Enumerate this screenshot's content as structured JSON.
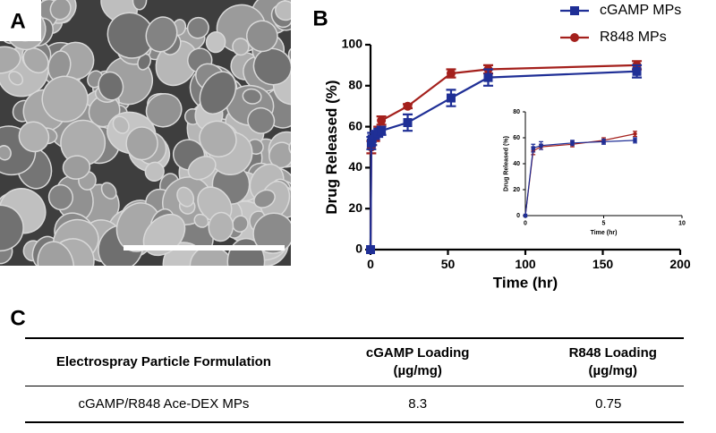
{
  "panel_labels": [
    "A",
    "B",
    "C"
  ],
  "chart_data": [
    {
      "type": "line",
      "xlabel": "Time (hr)",
      "ylabel": "Drug Released (%)",
      "x": [
        0,
        0.5,
        1,
        3,
        5,
        7,
        24,
        52,
        76,
        172
      ],
      "series": [
        {
          "name": "cGAMP MPs",
          "color": "#1f2f96",
          "marker": "square",
          "values": [
            0,
            52,
            54,
            56,
            57,
            58,
            62,
            74,
            84,
            87
          ],
          "errors": [
            0,
            3,
            3,
            2,
            2,
            2,
            4,
            4,
            4,
            3
          ]
        },
        {
          "name": "R848 MPs",
          "color": "#a4201c",
          "marker": "circle",
          "values": [
            0,
            50,
            53,
            55,
            58,
            63,
            70,
            86,
            88,
            90
          ],
          "errors": [
            0,
            3,
            2,
            2,
            2,
            2,
            1,
            2,
            2,
            2
          ]
        }
      ],
      "xlim": [
        0,
        200
      ],
      "xticks": [
        0,
        50,
        100,
        150,
        200
      ],
      "ylim": [
        0,
        100
      ],
      "yticks": [
        0,
        20,
        40,
        60,
        80,
        100
      ],
      "legend": "top-right"
    },
    {
      "type": "line",
      "xlabel": "Time (hr)",
      "ylabel": "Drug Released (%)",
      "x": [
        0,
        0.5,
        1,
        3,
        5,
        7
      ],
      "series": [
        {
          "name": "cGAMP MPs",
          "color": "#1f2f96",
          "marker": "square",
          "values": [
            0,
            52,
            54,
            56,
            57,
            58
          ],
          "errors": [
            0,
            3,
            3,
            2,
            2,
            2
          ]
        },
        {
          "name": "R848 MPs",
          "color": "#a4201c",
          "marker": "circle",
          "values": [
            0,
            50,
            53,
            55,
            58,
            63
          ],
          "errors": [
            0,
            3,
            2,
            2,
            2,
            2
          ]
        }
      ],
      "xlim": [
        0,
        10
      ],
      "xticks": [
        0,
        5,
        10
      ],
      "ylim": [
        0,
        80
      ],
      "yticks": [
        0,
        20,
        40,
        60,
        80
      ]
    }
  ],
  "table": {
    "header": [
      "Electrospray Particle Formulation",
      "cGAMP Loading (µg/mg)",
      "R848 Loading (µg/mg)"
    ],
    "rows": [
      [
        "cGAMP/R848 Ace-DEX MPs",
        "8.3",
        "0.75"
      ]
    ]
  }
}
